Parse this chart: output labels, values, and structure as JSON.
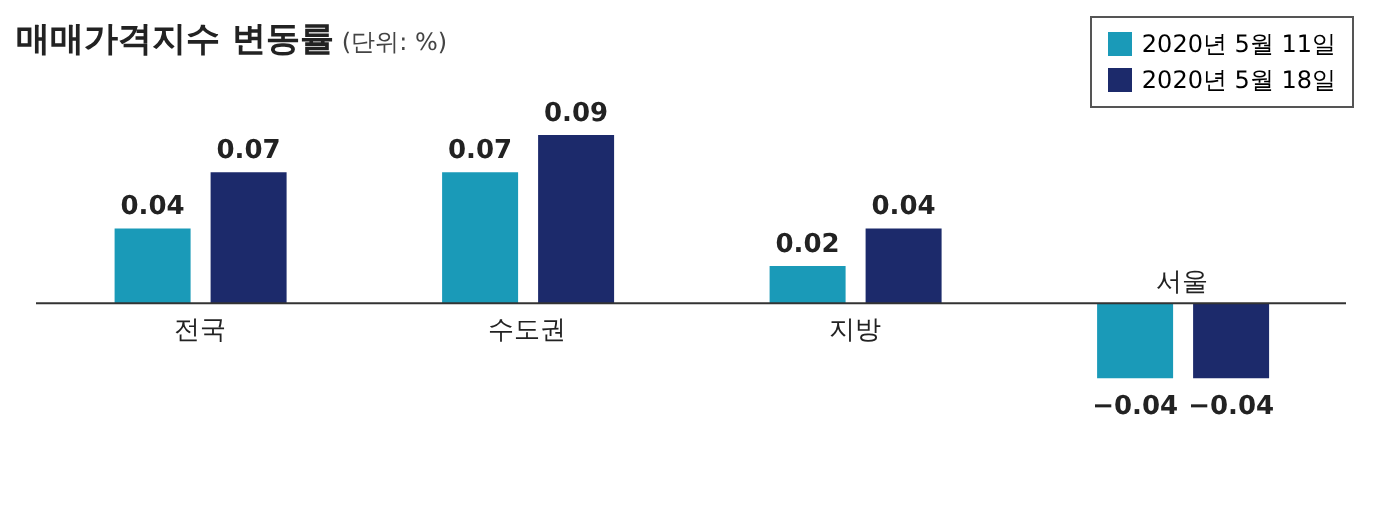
{
  "chart_data": {
    "type": "bar",
    "title": "매매가격지수 변동률",
    "subtitle": "(단위: %)",
    "categories": [
      "전국",
      "수도권",
      "지방",
      "서울"
    ],
    "series": [
      {
        "name": "2020년 5월 11일",
        "color": "#1a9ab8",
        "values": [
          0.04,
          0.07,
          0.02,
          -0.04
        ]
      },
      {
        "name": "2020년 5월 18일",
        "color": "#1c2a6b",
        "values": [
          0.07,
          0.09,
          0.04,
          -0.04
        ]
      }
    ],
    "data_labels": true,
    "legend": "top right"
  }
}
